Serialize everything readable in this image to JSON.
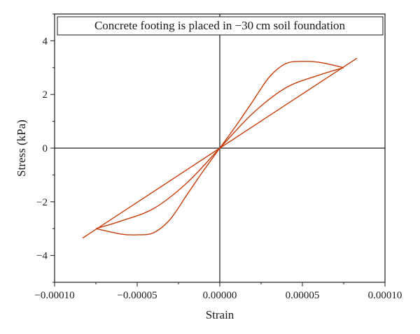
{
  "chart_data": {
    "type": "line",
    "title": "Concrete footing is placed in −30 cm soil foundation",
    "xlabel": "Strain",
    "ylabel": "Stress (kPa)",
    "xlim": [
      -0.0001,
      0.0001
    ],
    "ylim": [
      -5,
      5
    ],
    "x_ticks": [
      -0.0001,
      -5e-05,
      0,
      5e-05,
      0.0001
    ],
    "x_tick_labels": [
      "−0.00010",
      "−0.00005",
      "0.00000",
      "0.00005",
      "0.00010"
    ],
    "y_ticks": [
      -4,
      -2,
      0,
      2,
      4
    ],
    "y_tick_labels": [
      "−4",
      "−2",
      "0",
      "2",
      "4"
    ],
    "grid": false,
    "zero_lines": true,
    "line_color": "#c83c0a",
    "series": [
      {
        "x": [
          -8.3e-05,
          -5e-05,
          0,
          5e-05,
          8.3e-05
        ],
        "y": [
          -3.35,
          -2.02,
          0,
          2.02,
          3.35
        ]
      },
      {
        "x": [
          -7.5e-05,
          -6e-05,
          -4e-05,
          -2e-05,
          0,
          2e-05,
          4e-05,
          6e-05,
          7.5e-05
        ],
        "y": [
          -3.0,
          -2.72,
          -2.25,
          -1.3,
          0,
          1.3,
          2.25,
          2.72,
          3.0
        ]
      },
      {
        "x": [
          -7.5e-05,
          -6e-05,
          -5e-05,
          -4e-05,
          -3e-05,
          -2e-05,
          -1e-05,
          0,
          1e-05,
          2e-05,
          3e-05,
          4e-05,
          5e-05,
          6e-05,
          7.5e-05
        ],
        "y": [
          -3.0,
          -3.2,
          -3.23,
          -3.15,
          -2.65,
          -1.75,
          -0.85,
          0,
          0.85,
          1.75,
          2.65,
          3.15,
          3.23,
          3.2,
          3.0
        ]
      }
    ]
  }
}
